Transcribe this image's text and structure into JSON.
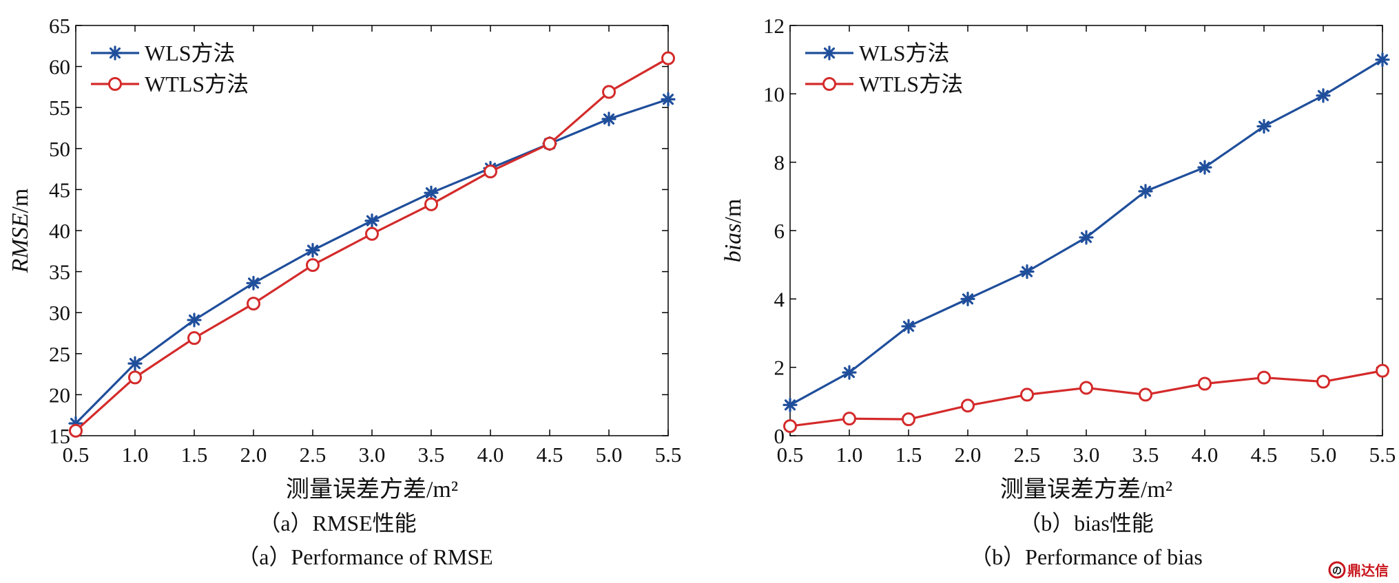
{
  "chart_data": [
    {
      "type": "line",
      "x": [
        0.5,
        1.0,
        1.5,
        2.0,
        2.5,
        3.0,
        3.5,
        4.0,
        4.5,
        5.0,
        5.5
      ],
      "xtick_labels": [
        "0.5",
        "1.0",
        "1.5",
        "2.0",
        "2.5",
        "3.0",
        "3.5",
        "4.0",
        "4.5",
        "5.0",
        "5.5"
      ],
      "xlim": [
        0.5,
        5.5
      ],
      "ylim": [
        15,
        65
      ],
      "yticks": [
        15,
        20,
        25,
        30,
        35,
        40,
        45,
        50,
        55,
        60,
        65
      ],
      "ytick_labels": [
        "15",
        "20",
        "25",
        "30",
        "35",
        "40",
        "45",
        "50",
        "55",
        "60",
        "65"
      ],
      "xlabel": "测量误差方差/m²",
      "ylabel_italic": "RMSE",
      "ylabel_unit": "/m",
      "caption_cn": "（a）RMSE性能",
      "caption_en": "（a）Performance of RMSE",
      "legend_position": "top-left",
      "grid": false,
      "series": [
        {
          "name": "WLS方法",
          "color": "#1f4e9b",
          "marker": "star",
          "values": [
            16.5,
            23.8,
            29.1,
            33.6,
            37.6,
            41.2,
            44.6,
            47.6,
            50.6,
            53.6,
            56.0
          ]
        },
        {
          "name": "WTLS方法",
          "color": "#d42a2a",
          "marker": "circle",
          "values": [
            15.6,
            22.1,
            26.9,
            31.1,
            35.8,
            39.6,
            43.2,
            47.2,
            50.6,
            56.9,
            61.0
          ]
        }
      ]
    },
    {
      "type": "line",
      "x": [
        0.5,
        1.0,
        1.5,
        2.0,
        2.5,
        3.0,
        3.5,
        4.0,
        4.5,
        5.0,
        5.5
      ],
      "xtick_labels": [
        "0.5",
        "1.0",
        "1.5",
        "2.0",
        "2.5",
        "3.0",
        "3.5",
        "4.0",
        "4.5",
        "5.0",
        "5.5"
      ],
      "xlim": [
        0.5,
        5.5
      ],
      "ylim": [
        0,
        12
      ],
      "yticks": [
        0,
        2,
        4,
        6,
        8,
        10,
        12
      ],
      "ytick_labels": [
        "0",
        "2",
        "4",
        "6",
        "8",
        "10",
        "12"
      ],
      "xlabel": "测量误差方差/m²",
      "ylabel_italic": "bias",
      "ylabel_unit": "/m",
      "caption_cn": "（b）bias性能",
      "caption_en": "（b）Performance of bias",
      "legend_position": "top-left",
      "grid": false,
      "series": [
        {
          "name": "WLS方法",
          "color": "#1f4e9b",
          "marker": "star",
          "values": [
            0.9,
            1.85,
            3.2,
            4.0,
            4.8,
            5.8,
            7.15,
            7.85,
            9.05,
            9.95,
            11.0
          ]
        },
        {
          "name": "WTLS方法",
          "color": "#d42a2a",
          "marker": "circle",
          "values": [
            0.28,
            0.5,
            0.48,
            0.88,
            1.2,
            1.4,
            1.2,
            1.52,
            1.7,
            1.58,
            1.9
          ]
        }
      ]
    }
  ],
  "watermark": {
    "text": "鼎达信",
    "icon": "dingdaxin-logo-icon",
    "color": "#c8161d"
  }
}
